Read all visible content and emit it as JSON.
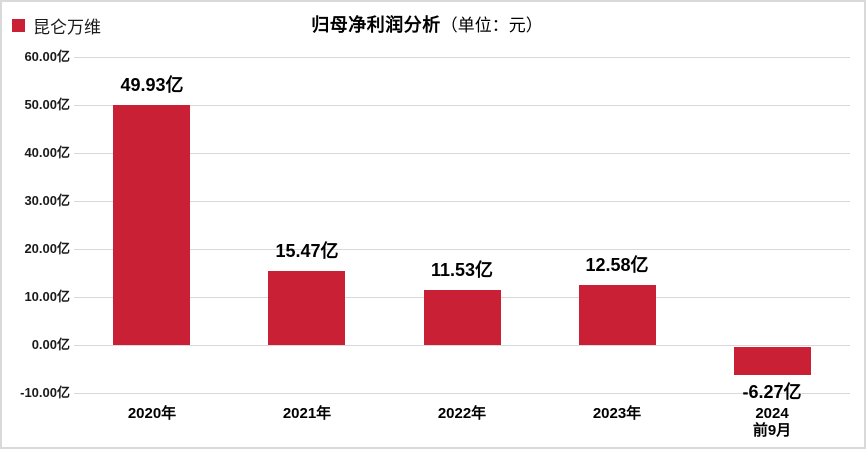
{
  "page": {
    "background": "#ffffff",
    "border_color": "#d9d9d9"
  },
  "legend": {
    "label": "昆仑万维",
    "swatch_color": "#c92036"
  },
  "title": {
    "main": "归母净利润分析",
    "unit": "（单位：元）"
  },
  "chart_data": {
    "type": "bar",
    "title": "归母净利润分析（单位：元）",
    "series_name": "昆仑万维",
    "categories": [
      "2020年",
      "2021年",
      "2022年",
      "2023年",
      "2024\n前9月"
    ],
    "values": [
      49.93,
      15.47,
      11.53,
      12.58,
      -6.27
    ],
    "value_labels": [
      "49.93亿",
      "15.47亿",
      "11.53亿",
      "12.58亿",
      "-6.27亿"
    ],
    "unit": "亿",
    "bar_color": "#c92036",
    "ylim": [
      -10,
      60
    ],
    "ytick_step": 10,
    "yticks": [
      {
        "value": 60,
        "label": "60.00亿"
      },
      {
        "value": 50,
        "label": "50.00亿"
      },
      {
        "value": 40,
        "label": "40.00亿"
      },
      {
        "value": 30,
        "label": "30.00亿"
      },
      {
        "value": 20,
        "label": "20.00亿"
      },
      {
        "value": 10,
        "label": "10.00亿"
      },
      {
        "value": 0,
        "label": "0.00亿"
      },
      {
        "value": -10,
        "label": "-10.00亿"
      }
    ],
    "grid": true,
    "gridline_color": "#d9d9d9",
    "legend_position": "top-left",
    "xlabel": "",
    "ylabel": ""
  }
}
